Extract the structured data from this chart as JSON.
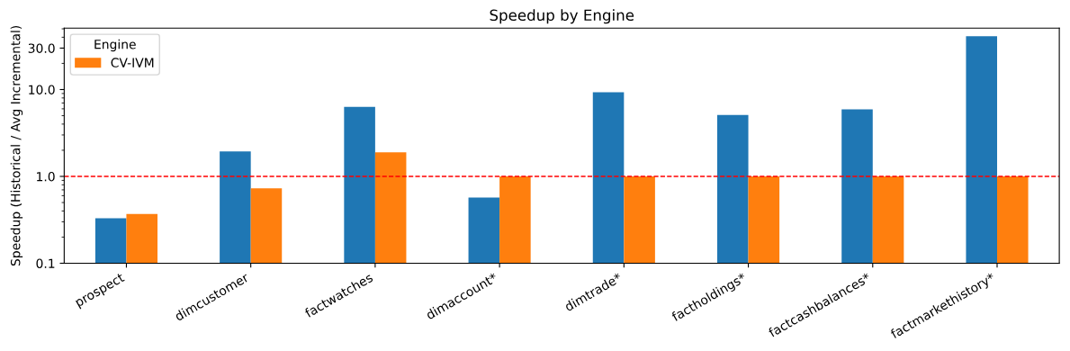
{
  "chart_data": {
    "type": "bar",
    "title": "Speedup by Engine",
    "ylabel": "Speedup (Historical / Avg Incremental)",
    "legend_title": "Engine",
    "categories": [
      "prospect",
      "dimcustomer",
      "factwatches",
      "dimaccount*",
      "dimtrade*",
      "factholdings*",
      "factcashbalances*",
      "factmarkethistory*"
    ],
    "series": [
      {
        "color": "#1f77b4",
        "values": [
          0.33,
          1.94,
          6.3,
          0.57,
          9.3,
          5.1,
          5.9,
          41
        ]
      },
      {
        "name": "CV-IVM",
        "color": "#ff7f0e",
        "values": [
          0.37,
          0.73,
          1.89,
          1.0,
          1.0,
          1.0,
          1.0,
          1.0
        ]
      }
    ],
    "log": "y",
    "ylim": [
      0.1,
      51
    ],
    "yticks": [
      0.1,
      {
        "value": 1,
        "label": "1.0"
      },
      {
        "value": 10,
        "label": "10.0"
      },
      {
        "value": 30,
        "label": "30.0"
      }
    ],
    "ref_lines": [
      {
        "axis": "y",
        "value": 1,
        "color": "#ff0000",
        "line_style": "dashed"
      }
    ],
    "legend": "top left",
    "grid": false
  }
}
